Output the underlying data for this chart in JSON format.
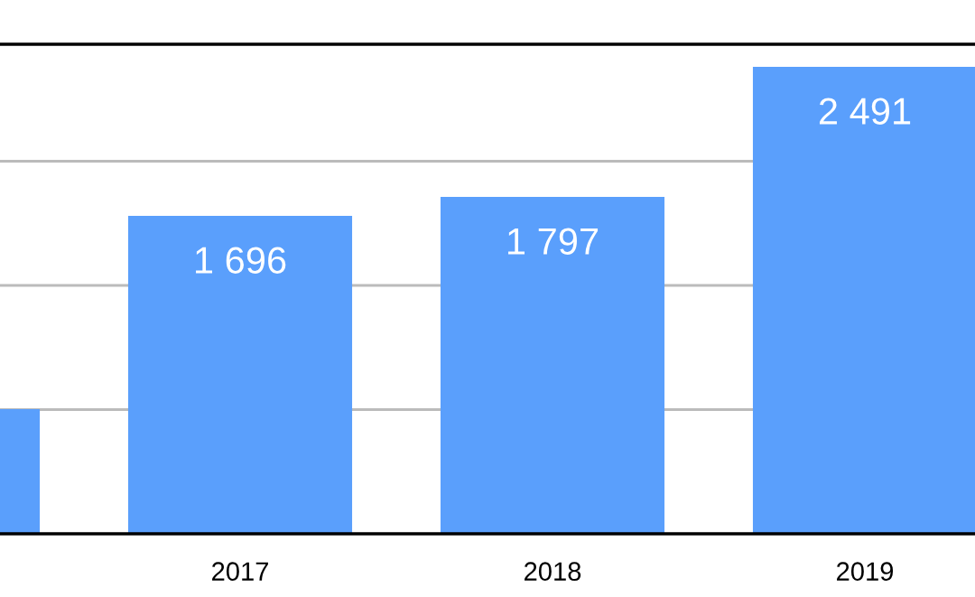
{
  "chart_data": {
    "type": "bar",
    "categories": [
      null,
      "2017",
      "2018",
      "2019"
    ],
    "values": [
      665,
      1696,
      1797,
      2491
    ],
    "value_labels": [
      null,
      "1 696",
      "1 797",
      "2 491"
    ],
    "color": "#5a9ffc",
    "ylim": [
      0,
      2611
    ],
    "yticks": [
      {
        "value": 662,
        "label": null
      },
      {
        "value": 1325,
        "label": null
      },
      {
        "value": 1987,
        "label": null
      }
    ],
    "tick_labels": "x",
    "grid": "y",
    "legend": false
  }
}
